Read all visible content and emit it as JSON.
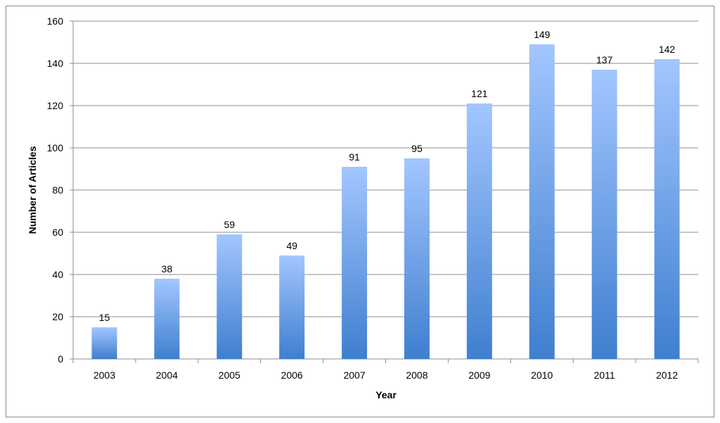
{
  "chart_data": {
    "type": "bar",
    "title": "",
    "xlabel": "Year",
    "ylabel": "Number of Articles",
    "categories": [
      "2003",
      "2004",
      "2005",
      "2006",
      "2007",
      "2008",
      "2009",
      "2010",
      "2011",
      "2012"
    ],
    "values": [
      15,
      38,
      59,
      49,
      91,
      95,
      121,
      149,
      137,
      142
    ],
    "ylim": [
      0,
      160
    ],
    "yticks": [
      0,
      20,
      40,
      60,
      80,
      100,
      120,
      140,
      160
    ],
    "grid": true,
    "legend": "none",
    "data_labels": true,
    "colors": {
      "bar_top": "#a3c6ff",
      "bar_bottom": "#3f7fcf",
      "grid": "#8c8c8c",
      "axis": "#8c8c8c"
    }
  }
}
